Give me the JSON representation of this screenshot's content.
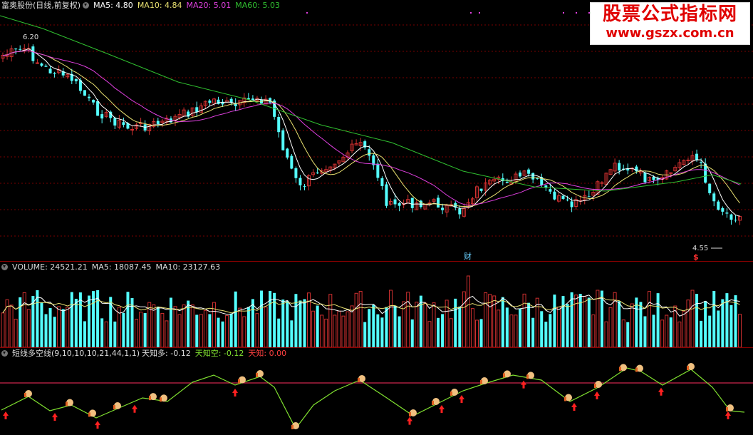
{
  "price_panel": {
    "stock_name": "富奥股份(日线,前复权)",
    "ma5_label": "MA5: 4.80",
    "ma10_label": "MA10: 4.84",
    "ma20_label": "MA20: 5.01",
    "ma60_label": "MA60: 5.03",
    "high_label": "6.20",
    "low_label": "4.55",
    "finance_tag": "财",
    "dividend_tag": "$"
  },
  "volume_panel": {
    "volume_label": "VOLUME: 24521.21",
    "ma5_label": "MA5: 18087.45",
    "ma10_label": "MA10: 23127.63"
  },
  "indicator_panel": {
    "name_label": "短线多空线(9,10,10,10,21,44,1,1)",
    "bull_label": "天知多: -0.12",
    "bear_label": "天知空: -0.12",
    "sky_label": "天知: 0.00"
  },
  "watermark": {
    "title": "股票公式指标网",
    "url": "www.gszx.com.cn"
  },
  "colors": {
    "up": "#d03030",
    "down": "#54ffff",
    "ma5": "#ffffff",
    "ma10": "#e8e070",
    "ma20": "#e040e0",
    "ma60": "#30c030",
    "indicator": "#80e030",
    "signal_up": "#ff2020"
  }
}
